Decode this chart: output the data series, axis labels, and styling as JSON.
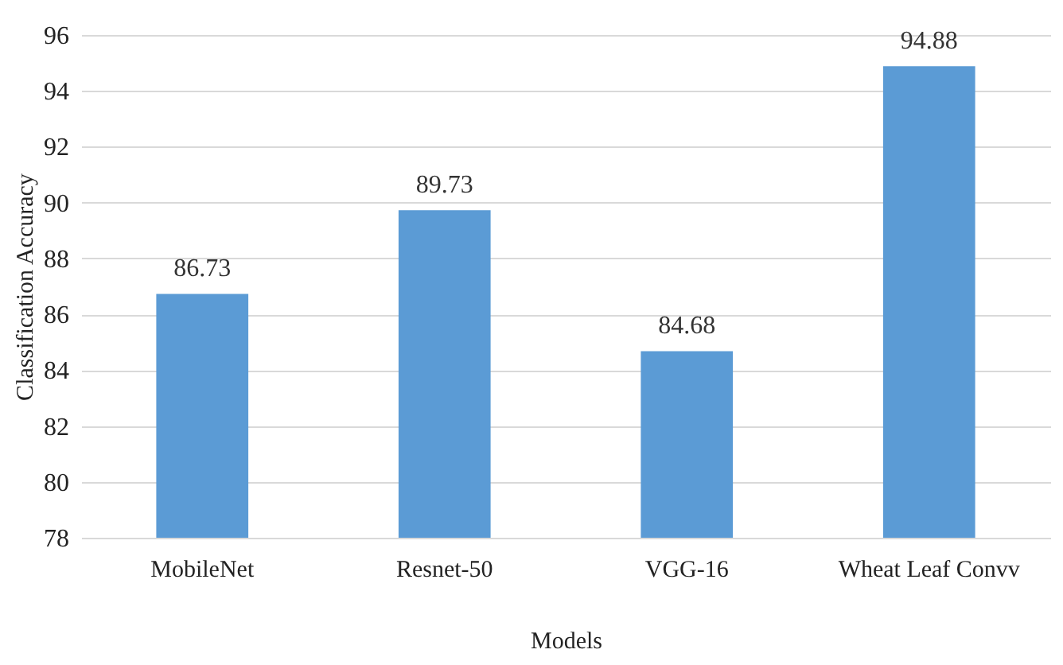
{
  "chart_data": {
    "type": "bar",
    "xlabel": "Models",
    "ylabel": "Classification Accuracy",
    "categories": [
      "MobileNet",
      "Resnet-50",
      "VGG-16",
      "Wheat Leaf Convv"
    ],
    "values": [
      86.73,
      89.73,
      84.68,
      94.88
    ],
    "color": "#5b9bd5",
    "ylim": [
      78,
      96
    ],
    "yticks": [
      78,
      80,
      82,
      84,
      86,
      88,
      90,
      92,
      94,
      96
    ],
    "grid": "y",
    "data_labels": true
  }
}
